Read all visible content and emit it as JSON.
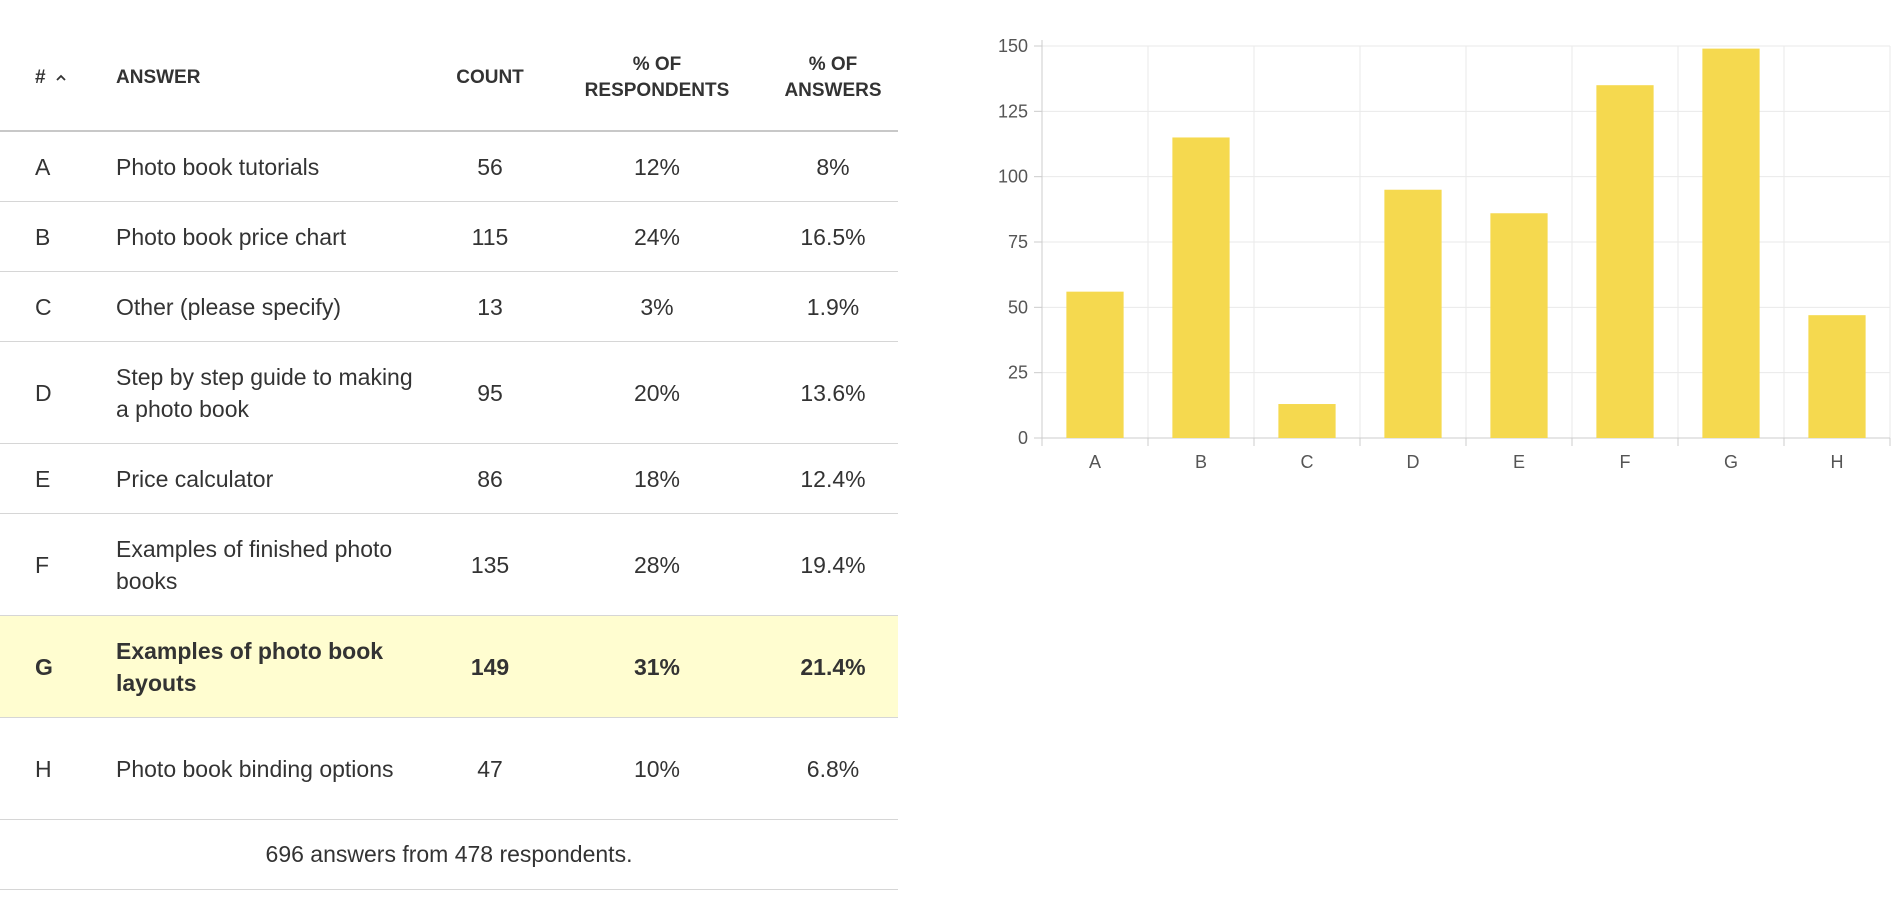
{
  "table": {
    "headers": {
      "id": "#",
      "answer": "ANSWER",
      "count": "COUNT",
      "pct_respondents_1": "% OF",
      "pct_respondents_2": "RESPONDENTS",
      "pct_answers_1": "% OF",
      "pct_answers_2": "ANSWERS"
    },
    "rows": [
      {
        "id": "A",
        "answer": "Photo book tutorials",
        "count": "56",
        "pct_respondents": "12%",
        "pct_answers": "8%"
      },
      {
        "id": "B",
        "answer": "Photo book price chart",
        "count": "115",
        "pct_respondents": "24%",
        "pct_answers": "16.5%"
      },
      {
        "id": "C",
        "answer": "Other (please specify)",
        "count": "13",
        "pct_respondents": "3%",
        "pct_answers": "1.9%"
      },
      {
        "id": "D",
        "answer": "Step by step guide to making a photo book",
        "count": "95",
        "pct_respondents": "20%",
        "pct_answers": "13.6%"
      },
      {
        "id": "E",
        "answer": "Price calculator",
        "count": "86",
        "pct_respondents": "18%",
        "pct_answers": "12.4%"
      },
      {
        "id": "F",
        "answer": "Examples of finished photo books",
        "count": "135",
        "pct_respondents": "28%",
        "pct_answers": "19.4%"
      },
      {
        "id": "G",
        "answer": "Examples of photo book layouts",
        "count": "149",
        "pct_respondents": "31%",
        "pct_answers": "21.4%"
      },
      {
        "id": "H",
        "answer": "Photo book binding options",
        "count": "47",
        "pct_respondents": "10%",
        "pct_answers": "6.8%"
      }
    ],
    "footer": "696 answers from 478 respondents."
  },
  "colors": {
    "bar": "#f5d94f",
    "highlight_row": "#fffdd0",
    "grid": "#eaeaea",
    "axis_text": "#555555"
  },
  "chart_data": {
    "type": "bar",
    "categories": [
      "A",
      "B",
      "C",
      "D",
      "E",
      "F",
      "G",
      "H"
    ],
    "values": [
      56,
      115,
      13,
      95,
      86,
      135,
      149,
      47
    ],
    "ylim": [
      0,
      150
    ],
    "yticks": [
      0,
      25,
      50,
      75,
      100,
      125,
      150
    ],
    "grid": true,
    "title": "",
    "xlabel": "",
    "ylabel": ""
  }
}
